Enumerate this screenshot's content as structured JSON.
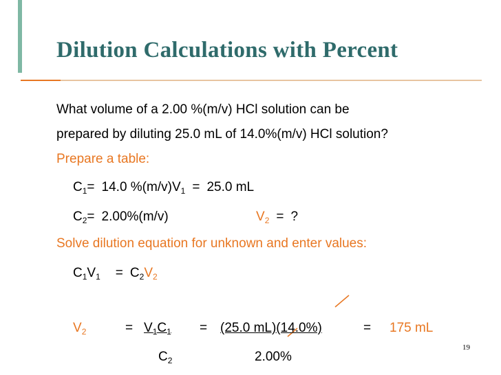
{
  "title": "Dilution Calculations with Percent",
  "question": [
    "What volume of a 2.00 %(m/v) HCl solution can be",
    "prepared by diluting 25.0 mL of 14.0%(m/v) HCl solution?"
  ],
  "step1": "Prepare a table:",
  "table": {
    "row1": [
      "C",
      "1",
      "=",
      "14.0 %(m/v)",
      "V",
      "1",
      "=",
      "25.0 mL"
    ],
    "row2": [
      "C",
      "2",
      "=",
      "2.00%(m/v)",
      "V",
      "2",
      "=",
      "?"
    ]
  },
  "step2": "Solve dilution equation for unknown and enter values:",
  "equation": [
    "C",
    "1",
    "V",
    "1",
    "=",
    "C",
    "2",
    "V",
    "2"
  ],
  "solution": {
    "left": [
      "V",
      "2"
    ],
    "eq1": "=",
    "numerator1": [
      "V",
      "1",
      "C",
      "1"
    ],
    "denominator1": [
      "C",
      "2"
    ],
    "eq2": "=",
    "numerator2": "(25.0 mL)(14.0%)",
    "denominator2": "2.00%",
    "eq3": "=",
    "result": "175 mL"
  },
  "page_number": "19"
}
